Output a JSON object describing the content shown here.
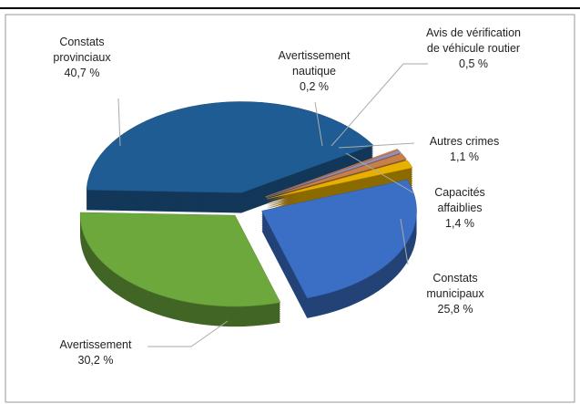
{
  "chart_data": {
    "type": "pie",
    "categories": [
      "Constats municipaux",
      "Avertissement",
      "Constats provinciaux",
      "Avertissement nautique",
      "Avis de vérification de véhicule routier",
      "Autres crimes",
      "Capacités affaiblies"
    ],
    "values": [
      25.8,
      30.2,
      40.7,
      0.2,
      0.5,
      1.1,
      1.4
    ],
    "value_labels": [
      "25,8 %",
      "30,2 %",
      "40,7 %",
      "0,2 %",
      "0,5 %",
      "1,1 %",
      "1,4 %"
    ],
    "colors": [
      "#3b6fc6",
      "#6ca83c",
      "#1f5c93",
      "#d9854a",
      "#9a8fb0",
      "#c8804a",
      "#e8b000"
    ]
  }
}
